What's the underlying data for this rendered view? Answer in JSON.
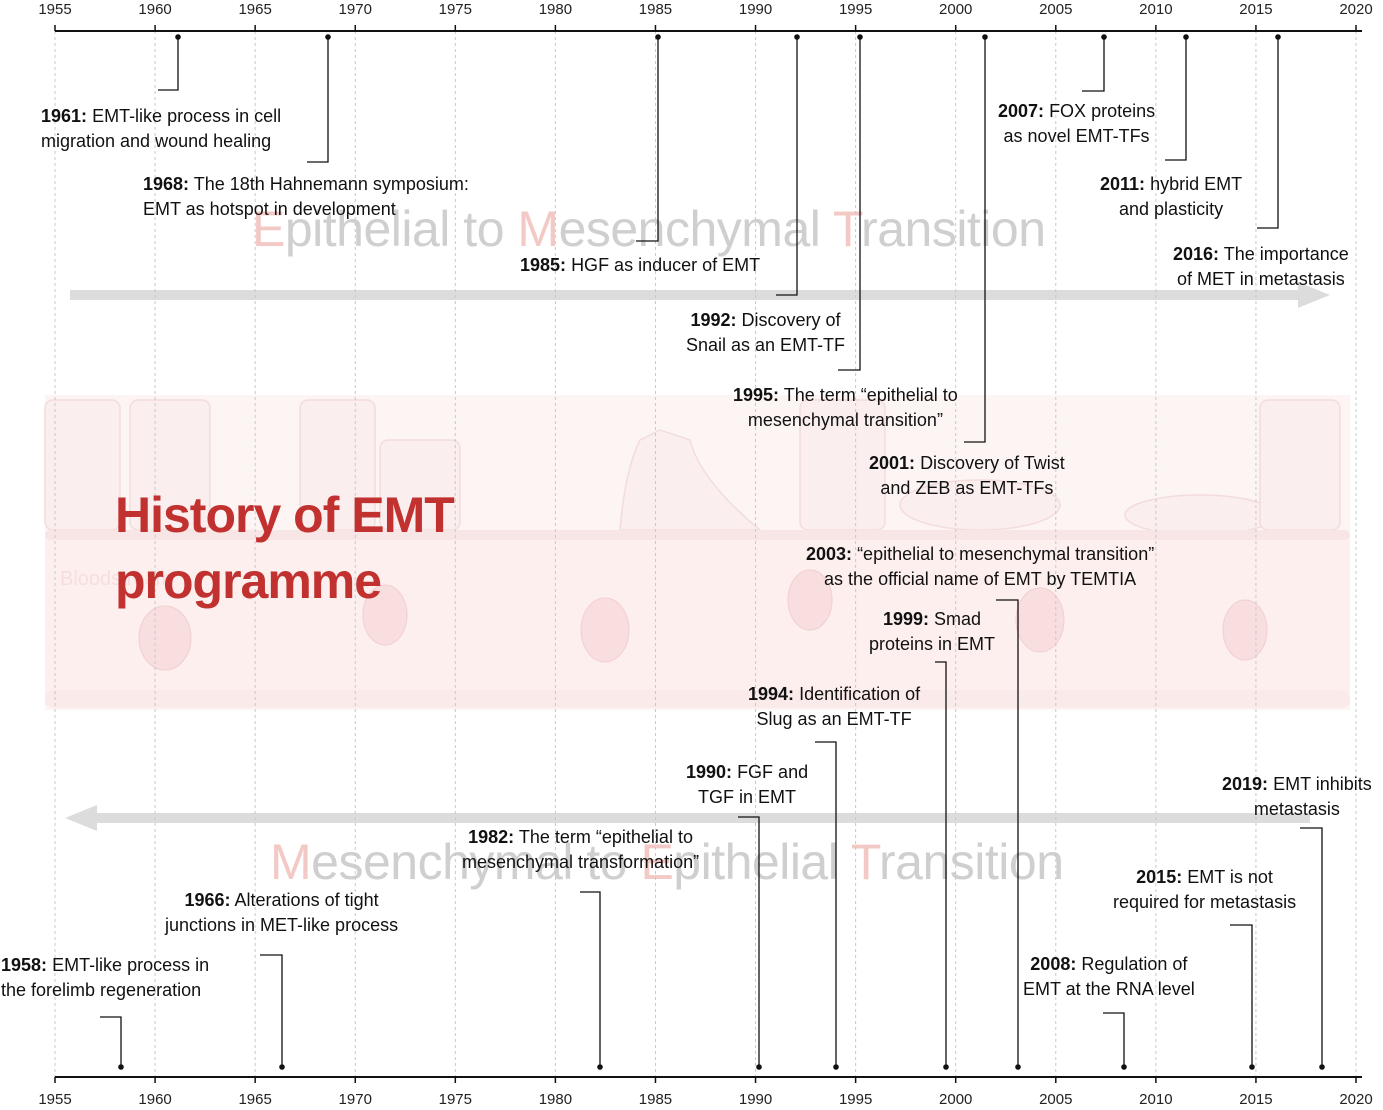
{
  "title": {
    "line1": "History of EMT",
    "line2": "programme"
  },
  "watermark": {
    "top": [
      {
        "cap": "E",
        "rest": "pithelial to "
      },
      {
        "cap": "M",
        "rest": "esenchymal "
      },
      {
        "cap": "T",
        "rest": "ransition"
      }
    ],
    "bottom": [
      {
        "cap": "M",
        "rest": "esenchymal to "
      },
      {
        "cap": "E",
        "rest": "pithelial "
      },
      {
        "cap": "T",
        "rest": "ransition"
      }
    ],
    "bloodstream": "Bloodstream"
  },
  "axis_ticks": [
    "1955",
    "1960",
    "1965",
    "1970",
    "1975",
    "1980",
    "1985",
    "1990",
    "1995",
    "2000",
    "2005",
    "2010",
    "2015",
    "2020"
  ],
  "events_top": [
    {
      "year": "1961:",
      "lines": [
        "EMT-like process in cell",
        "migration and  wound healing"
      ]
    },
    {
      "year": "1968:",
      "lines": [
        "The 18th Hahnemann symposium:",
        "EMT as hotspot in development"
      ]
    },
    {
      "year": "1985:",
      "lines": [
        "HGF as inducer of EMT"
      ]
    },
    {
      "year": "1992:",
      "lines": [
        "Discovery of",
        "Snail as an EMT-TF"
      ]
    },
    {
      "year": "1995:",
      "lines": [
        "The term “epithelial to",
        "mesenchymal transition”"
      ]
    },
    {
      "year": "2001:",
      "lines": [
        "Discovery of Twist",
        "and ZEB as EMT-TFs"
      ]
    },
    {
      "year": "2007:",
      "lines": [
        "FOX proteins",
        "as novel EMT-TFs"
      ]
    },
    {
      "year": "2011:",
      "lines": [
        "hybrid EMT",
        "and plasticity"
      ]
    },
    {
      "year": "2016:",
      "lines": [
        "The importance",
        "of MET in metastasis"
      ]
    }
  ],
  "events_bottom": [
    {
      "year": "1958:",
      "lines": [
        "EMT-like process in",
        "the forelimb regeneration"
      ]
    },
    {
      "year": "1966:",
      "lines": [
        "Alterations of tight",
        "junctions in MET-like process"
      ]
    },
    {
      "year": "1982:",
      "lines": [
        "The term “epithelial to",
        "mesenchymal transformation”"
      ]
    },
    {
      "year": "1990:",
      "lines": [
        "FGF and",
        "TGF in EMT"
      ]
    },
    {
      "year": "1994:",
      "lines": [
        "Identification of",
        "Slug as an EMT-TF"
      ]
    },
    {
      "year": "1999:",
      "lines": [
        "Smad",
        "proteins in EMT"
      ]
    },
    {
      "year": "2003:",
      "lines": [
        "“epithelial to mesenchymal transition”",
        "as the official name of EMT by TEMTIA"
      ]
    },
    {
      "year": "2008:",
      "lines": [
        "Regulation of",
        "EMT at the RNA level"
      ]
    },
    {
      "year": "2015:",
      "lines": [
        "EMT is not",
        "required for metastasis"
      ]
    },
    {
      "year": "2019:",
      "lines": [
        "EMT inhibits",
        "metastasis"
      ]
    }
  ],
  "colors": {
    "title": "#c0312f",
    "axis": "#111111",
    "arrow": "#dcdcdc",
    "watermark_cap": "#f3c9c6",
    "background_band": "#fbf1f0"
  }
}
